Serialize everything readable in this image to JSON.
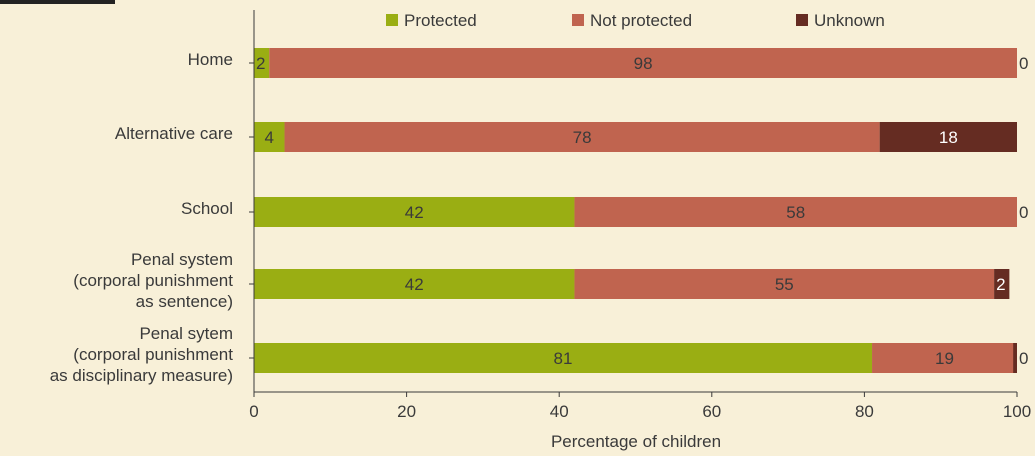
{
  "chart_data": {
    "type": "bar",
    "orientation": "horizontal",
    "stacked": true,
    "title": "",
    "xlabel": "Percentage of children",
    "ylabel": "",
    "xlim": [
      0,
      100
    ],
    "x_ticks": [
      0,
      20,
      40,
      60,
      80,
      100
    ],
    "grid": false,
    "legend_position": "top",
    "categories": [
      [
        "Home"
      ],
      [
        "Alternative care"
      ],
      [
        "School"
      ],
      [
        "Penal system",
        "(corporal punishment",
        "as sentence)"
      ],
      [
        "Penal sytem",
        "(corporal punishment",
        "as disciplinary measure)"
      ]
    ],
    "series": [
      {
        "name": "Protected",
        "color": "#9aae13",
        "values": [
          2,
          4,
          42,
          42,
          81
        ]
      },
      {
        "name": "Not protected",
        "color": "#c0644f",
        "values": [
          98,
          78,
          58,
          55,
          19
        ]
      },
      {
        "name": "Unknown",
        "color": "#652c22",
        "values": [
          0,
          18,
          0,
          2,
          0
        ]
      }
    ]
  }
}
